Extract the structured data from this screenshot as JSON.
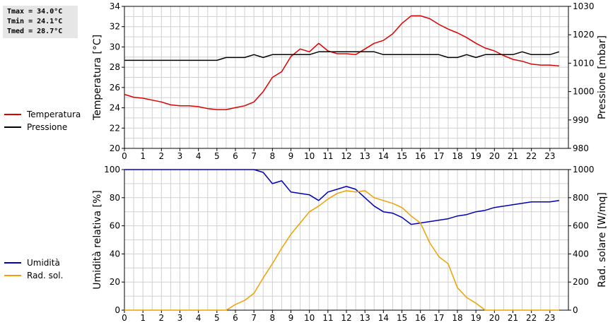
{
  "stats": {
    "tmax": "Tmax = 34.0°C",
    "tmin": "Tmin = 24.1°C",
    "tmed": "Tmed = 28.7°C"
  },
  "colors": {
    "temperatura": "#dd0000",
    "pressione": "#000000",
    "umidita": "#0000bb",
    "radiazione": "#f0a000",
    "grid": "#d0d0d0"
  },
  "chart_data": [
    {
      "type": "line",
      "xlim": [
        0,
        24
      ],
      "x_ticks": [
        "0",
        "1",
        "2",
        "3",
        "4",
        "5",
        "6",
        "7",
        "8",
        "9",
        "10",
        "11",
        "12",
        "13",
        "14",
        "15",
        "16",
        "17",
        "18",
        "19",
        "20",
        "21",
        "22",
        "23"
      ],
      "ylabel": "Temperatura [°C]",
      "ylim": [
        20,
        35
      ],
      "y_ticks": [
        "20",
        "22",
        "24",
        "26",
        "28",
        "30",
        "32",
        "34"
      ],
      "y2label": "Pressione [mbar]",
      "y2lim": [
        980,
        1030
      ],
      "y2_ticks": [
        "980",
        "990",
        "1000",
        "1010",
        "1020",
        "1030"
      ],
      "grid": true,
      "legend_position": "left",
      "series": [
        {
          "name": "Temperatura",
          "axis": "left",
          "x": [
            0,
            0.5,
            1,
            1.5,
            2,
            2.5,
            3,
            3.5,
            4,
            4.5,
            5,
            5.5,
            6,
            6.5,
            7,
            7.5,
            8,
            8.5,
            9,
            9.5,
            10,
            10.5,
            11,
            11.5,
            12,
            12.5,
            13,
            13.5,
            14,
            14.5,
            15,
            15.5,
            16,
            16.5,
            17,
            17.5,
            18,
            18.5,
            19,
            19.5,
            20,
            20.5,
            21,
            21.5,
            22,
            22.5,
            23,
            23.5
          ],
          "values": [
            25.7,
            25.4,
            25.3,
            25.1,
            24.9,
            24.6,
            24.5,
            24.5,
            24.4,
            24.2,
            24.1,
            24.1,
            24.3,
            24.5,
            24.9,
            26.0,
            27.5,
            28.1,
            29.7,
            30.5,
            30.2,
            31.1,
            30.3,
            30.0,
            30.0,
            29.9,
            30.5,
            31.1,
            31.4,
            32.1,
            33.2,
            34.0,
            34.0,
            33.7,
            33.1,
            32.6,
            32.2,
            31.7,
            31.1,
            30.6,
            30.3,
            29.8,
            29.4,
            29.2,
            28.9,
            28.8,
            28.8,
            28.7
          ]
        },
        {
          "name": "Pressione",
          "axis": "right",
          "x": [
            0,
            0.5,
            1,
            1.5,
            2,
            2.5,
            3,
            3.5,
            4,
            4.5,
            5,
            5.5,
            6,
            6.5,
            7,
            7.5,
            8,
            8.5,
            9,
            9.5,
            10,
            10.5,
            11,
            11.5,
            12,
            12.5,
            13,
            13.5,
            14,
            14.5,
            15,
            15.5,
            16,
            16.5,
            17,
            17.5,
            18,
            18.5,
            19,
            19.5,
            20,
            20.5,
            21,
            21.5,
            22,
            22.5,
            23,
            23.5
          ],
          "values": [
            1011,
            1011,
            1011,
            1011,
            1011,
            1011,
            1011,
            1011,
            1011,
            1011,
            1011,
            1012,
            1012,
            1012,
            1013,
            1012,
            1013,
            1013,
            1013,
            1013,
            1013,
            1014,
            1014,
            1014,
            1014,
            1014,
            1014,
            1014,
            1013,
            1013,
            1013,
            1013,
            1013,
            1013,
            1013,
            1012,
            1012,
            1013,
            1012,
            1013,
            1013,
            1013,
            1013,
            1014,
            1013,
            1013,
            1013,
            1014
          ]
        }
      ]
    },
    {
      "type": "line",
      "xlim": [
        0,
        24
      ],
      "x_ticks": [
        "0",
        "1",
        "2",
        "3",
        "4",
        "5",
        "6",
        "7",
        "8",
        "9",
        "10",
        "11",
        "12",
        "13",
        "14",
        "15",
        "16",
        "17",
        "18",
        "19",
        "20",
        "21",
        "22",
        "23"
      ],
      "ylabel": "Umidità relativa [%]",
      "ylim": [
        0,
        100
      ],
      "y_ticks": [
        "0",
        "20",
        "40",
        "60",
        "80",
        "100"
      ],
      "y2label": "Rad. solare [W/mq]",
      "y2lim": [
        0,
        1000
      ],
      "y2_ticks": [
        "0",
        "200",
        "400",
        "600",
        "800",
        "1000"
      ],
      "grid": true,
      "legend_position": "left",
      "series": [
        {
          "name": "Umidità",
          "axis": "left",
          "x": [
            0,
            0.5,
            1,
            1.5,
            2,
            2.5,
            3,
            3.5,
            4,
            4.5,
            5,
            5.5,
            6,
            6.5,
            7,
            7.5,
            8,
            8.5,
            9,
            9.5,
            10,
            10.5,
            11,
            11.5,
            12,
            12.5,
            13,
            13.5,
            14,
            14.5,
            15,
            15.5,
            16,
            16.5,
            17,
            17.5,
            18,
            18.5,
            19,
            19.5,
            20,
            20.5,
            21,
            21.5,
            22,
            22.5,
            23,
            23.5
          ],
          "values": [
            100,
            100,
            100,
            100,
            100,
            100,
            100,
            100,
            100,
            100,
            100,
            100,
            100,
            100,
            100,
            98,
            90,
            92,
            84,
            83,
            82,
            78,
            84,
            86,
            88,
            86,
            80,
            74,
            70,
            69,
            66,
            61,
            62,
            63,
            64,
            65,
            67,
            68,
            70,
            71,
            73,
            74,
            75,
            76,
            77,
            77,
            77,
            78
          ]
        },
        {
          "name": "Rad. sol.",
          "axis": "right",
          "x": [
            0,
            0.5,
            1,
            1.5,
            2,
            2.5,
            3,
            3.5,
            4,
            4.5,
            5,
            5.5,
            6,
            6.5,
            7,
            7.5,
            8,
            8.5,
            9,
            9.5,
            10,
            10.5,
            11,
            11.5,
            12,
            12.5,
            13,
            13.5,
            14,
            14.5,
            15,
            15.5,
            16,
            16.5,
            17,
            17.5,
            18,
            18.5,
            19,
            19.5,
            20,
            20.5,
            21,
            21.5,
            22,
            22.5,
            23,
            23.5
          ],
          "values": [
            0,
            0,
            0,
            0,
            0,
            0,
            0,
            0,
            0,
            0,
            0,
            0,
            40,
            70,
            120,
            230,
            330,
            440,
            540,
            620,
            700,
            740,
            790,
            830,
            850,
            840,
            850,
            800,
            780,
            760,
            730,
            670,
            620,
            480,
            380,
            330,
            160,
            90,
            50,
            0,
            0,
            0,
            0,
            0,
            0,
            0,
            0,
            0
          ]
        }
      ]
    }
  ]
}
